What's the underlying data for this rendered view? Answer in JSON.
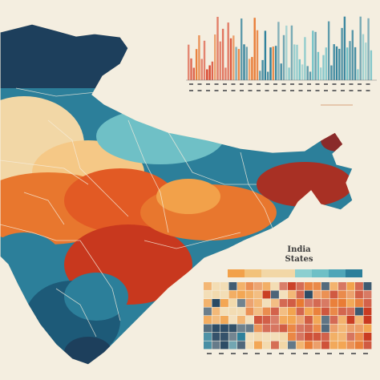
{
  "legend": {
    "title_line1": "India",
    "title_line2": "States"
  },
  "colors": {
    "background": "#f4eee0",
    "navy": "#1d3f5c",
    "teal": "#2c7f9a",
    "aqua": "#6fc0c6",
    "cream": "#f2d7a6",
    "orange": "#e8772e",
    "red": "#c8381e",
    "maroon": "#8a2a2a"
  },
  "icons": {
    "map": "india-map-silhouette",
    "top_chart": "bar-histogram",
    "bottom_chart": "heatmap-grid"
  }
}
